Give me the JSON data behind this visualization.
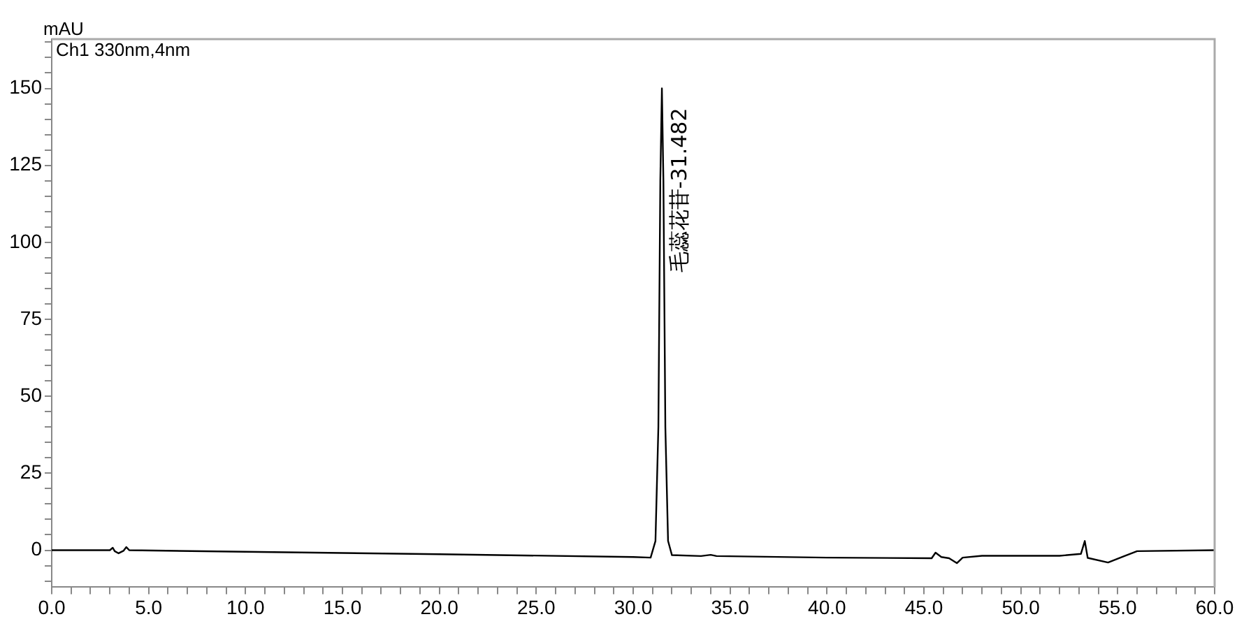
{
  "chart_data": {
    "type": "line",
    "ylabel": "mAU",
    "annotations": [
      "Ch1 330nm,4nm",
      {
        "text": "毛蕊花苷-31.482",
        "x": 31.482,
        "y": 150
      }
    ],
    "marker": "none",
    "line_style": "solid",
    "grid": false,
    "legend": false,
    "xlim": [
      0,
      60
    ],
    "ylim": [
      -12,
      166
    ],
    "xticks": [
      {
        "value": 0,
        "label": "0.0"
      },
      {
        "value": 1,
        "label": null
      },
      {
        "value": 2,
        "label": null
      },
      {
        "value": 3,
        "label": null
      },
      {
        "value": 4,
        "label": null
      },
      {
        "value": 5,
        "label": "5.0"
      },
      {
        "value": 6,
        "label": null
      },
      {
        "value": 7,
        "label": null
      },
      {
        "value": 8,
        "label": null
      },
      {
        "value": 9,
        "label": null
      },
      {
        "value": 10,
        "label": "10.0"
      },
      {
        "value": 11,
        "label": null
      },
      {
        "value": 12,
        "label": null
      },
      {
        "value": 13,
        "label": null
      },
      {
        "value": 14,
        "label": null
      },
      {
        "value": 15,
        "label": "15.0"
      },
      {
        "value": 16,
        "label": null
      },
      {
        "value": 17,
        "label": null
      },
      {
        "value": 18,
        "label": null
      },
      {
        "value": 19,
        "label": null
      },
      {
        "value": 20,
        "label": "20.0"
      },
      {
        "value": 21,
        "label": null
      },
      {
        "value": 22,
        "label": null
      },
      {
        "value": 23,
        "label": null
      },
      {
        "value": 24,
        "label": null
      },
      {
        "value": 25,
        "label": "25.0"
      },
      {
        "value": 26,
        "label": null
      },
      {
        "value": 27,
        "label": null
      },
      {
        "value": 28,
        "label": null
      },
      {
        "value": 29,
        "label": null
      },
      {
        "value": 30,
        "label": "30.0"
      },
      {
        "value": 31,
        "label": null
      },
      {
        "value": 32,
        "label": null
      },
      {
        "value": 33,
        "label": null
      },
      {
        "value": 34,
        "label": null
      },
      {
        "value": 35,
        "label": "35.0"
      },
      {
        "value": 36,
        "label": null
      },
      {
        "value": 37,
        "label": null
      },
      {
        "value": 38,
        "label": null
      },
      {
        "value": 39,
        "label": null
      },
      {
        "value": 40,
        "label": "40.0"
      },
      {
        "value": 41,
        "label": null
      },
      {
        "value": 42,
        "label": null
      },
      {
        "value": 43,
        "label": null
      },
      {
        "value": 44,
        "label": null
      },
      {
        "value": 45,
        "label": "45.0"
      },
      {
        "value": 46,
        "label": null
      },
      {
        "value": 47,
        "label": null
      },
      {
        "value": 48,
        "label": null
      },
      {
        "value": 49,
        "label": null
      },
      {
        "value": 50,
        "label": "50.0"
      },
      {
        "value": 51,
        "label": null
      },
      {
        "value": 52,
        "label": null
      },
      {
        "value": 53,
        "label": null
      },
      {
        "value": 54,
        "label": null
      },
      {
        "value": 55,
        "label": "55.0"
      },
      {
        "value": 56,
        "label": null
      },
      {
        "value": 57,
        "label": null
      },
      {
        "value": 58,
        "label": null
      },
      {
        "value": 59,
        "label": null
      },
      {
        "value": 60,
        "label": "60.0"
      }
    ],
    "yticks": [
      {
        "value": -10,
        "label": null
      },
      {
        "value": -5,
        "label": null
      },
      0,
      {
        "value": 5,
        "label": null
      },
      {
        "value": 10,
        "label": null
      },
      {
        "value": 15,
        "label": null
      },
      {
        "value": 20,
        "label": null
      },
      25,
      {
        "value": 30,
        "label": null
      },
      {
        "value": 35,
        "label": null
      },
      {
        "value": 40,
        "label": null
      },
      {
        "value": 45,
        "label": null
      },
      50,
      {
        "value": 55,
        "label": null
      },
      {
        "value": 60,
        "label": null
      },
      {
        "value": 65,
        "label": null
      },
      {
        "value": 70,
        "label": null
      },
      75,
      {
        "value": 80,
        "label": null
      },
      {
        "value": 85,
        "label": null
      },
      {
        "value": 90,
        "label": null
      },
      {
        "value": 95,
        "label": null
      },
      100,
      {
        "value": 105,
        "label": null
      },
      {
        "value": 110,
        "label": null
      },
      {
        "value": 115,
        "label": null
      },
      {
        "value": 120,
        "label": null
      },
      125,
      {
        "value": 130,
        "label": null
      },
      {
        "value": 135,
        "label": null
      },
      {
        "value": 140,
        "label": null
      },
      {
        "value": 145,
        "label": null
      },
      150,
      {
        "value": 155,
        "label": null
      },
      {
        "value": 160,
        "label": null
      },
      {
        "value": 165,
        "label": null
      }
    ],
    "series": [
      {
        "color": "#000000",
        "x": [
          0,
          3.0,
          3.15,
          3.25,
          3.45,
          3.7,
          3.85,
          4.0,
          10,
          20,
          30,
          30.9,
          31.15,
          31.3,
          31.4,
          31.482,
          31.56,
          31.66,
          31.8,
          32.0,
          33.5,
          34.0,
          34.3,
          40,
          45.4,
          45.6,
          45.9,
          46.3,
          46.7,
          47.0,
          48,
          52,
          53.1,
          53.3,
          53.45,
          54.5,
          55.3,
          56,
          60
        ],
        "values": [
          0,
          0,
          0.8,
          -0.3,
          -1,
          -0.2,
          1,
          0,
          -0.5,
          -1.3,
          -2.2,
          -2.4,
          3,
          40,
          120,
          150,
          120,
          40,
          3,
          -1.6,
          -1.9,
          -1.5,
          -1.9,
          -2.4,
          -2.6,
          -0.8,
          -2.2,
          -2.6,
          -4.2,
          -2.4,
          -1.8,
          -1.8,
          -1.2,
          3,
          -2.5,
          -4,
          -2,
          -0.3,
          0
        ]
      }
    ]
  }
}
